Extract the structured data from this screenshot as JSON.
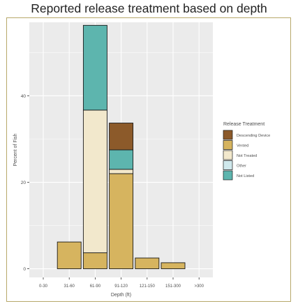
{
  "title": "Reported release treatment based on depth",
  "colors": {
    "panel_bg": "#ebebeb",
    "grid": "#ffffff",
    "bar_stroke": "#1a1a1a",
    "frame": "#b7a86a"
  },
  "chart_data": {
    "type": "bar",
    "stacked": true,
    "xlabel": "Depth (ft)",
    "ylabel": "Percent of Fish",
    "ylim": [
      -2,
      57
    ],
    "yticks": [
      0,
      20,
      40
    ],
    "categories": [
      "0-30",
      "31-60",
      "61-90",
      "91-120",
      "121-150",
      "151-300",
      ">300"
    ],
    "series": [
      {
        "name": "Vented",
        "color": "#d6b45f",
        "values": [
          0,
          6.2,
          3.7,
          22.0,
          2.5,
          1.4,
          0
        ]
      },
      {
        "name": "Not Treated",
        "color": "#f2e8cc",
        "values": [
          0,
          0,
          33.0,
          1.0,
          0,
          0,
          0
        ]
      },
      {
        "name": "Other",
        "color": "#cfe8ec",
        "values": [
          0,
          0,
          0,
          0,
          0,
          0,
          0
        ]
      },
      {
        "name": "Not Listed",
        "color": "#5db5ae",
        "values": [
          0,
          0,
          19.6,
          4.5,
          0,
          0,
          0
        ]
      },
      {
        "name": "Descending Device",
        "color": "#8c5a2a",
        "values": [
          0,
          0,
          0,
          6.2,
          0,
          0,
          0
        ]
      }
    ],
    "legend": {
      "title": "Release Treatment",
      "position": "right",
      "entries": [
        "Descending Device",
        "Vented",
        "Not Treated",
        "Other",
        "Not Listed"
      ]
    },
    "grid": true
  }
}
